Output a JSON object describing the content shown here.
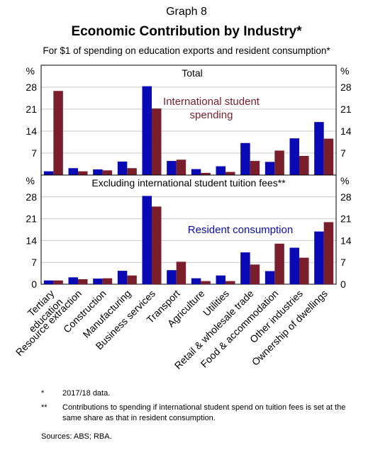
{
  "graph_number": "Graph 8",
  "title": "Economic Contribution by Industry*",
  "subtitle": "For $1 of spending on education exports and resident consumption*",
  "colors": {
    "blue": "#0A0AB4",
    "maroon": "#7B1E2C"
  },
  "chart_data": [
    {
      "type": "bar",
      "title": "Total",
      "ylabel": "%",
      "ylim": [
        0,
        35
      ],
      "yticks": [
        0,
        7,
        14,
        21,
        28
      ],
      "annotation": "International student spending",
      "categories": [
        "Tertiary education",
        "Resource extraction",
        "Construction",
        "Manufacturing",
        "Business services",
        "Transport",
        "Agriculture",
        "Utilities",
        "Retail & wholesale trade",
        "Food & accommodation",
        "Other industries",
        "Ownership of dwellings"
      ],
      "series": [
        {
          "name": "Resident consumption",
          "values": [
            1.2,
            2.2,
            1.8,
            4.3,
            28.3,
            4.5,
            1.9,
            2.8,
            10.2,
            4.2,
            11.7,
            16.9
          ]
        },
        {
          "name": "International student spending",
          "values": [
            26.8,
            1.2,
            1.5,
            2.2,
            21.2,
            4.9,
            0.7,
            1.0,
            4.5,
            7.8,
            6.1,
            11.6
          ]
        }
      ]
    },
    {
      "type": "bar",
      "title": "Excluding international student tuition fees**",
      "ylabel": "%",
      "ylim": [
        0,
        35
      ],
      "yticks": [
        0,
        7,
        14,
        21,
        28
      ],
      "annotation": "Resident consumption",
      "categories": [
        "Tertiary education",
        "Resource extraction",
        "Construction",
        "Manufacturing",
        "Business services",
        "Transport",
        "Agriculture",
        "Utilities",
        "Retail & wholesale trade",
        "Food & accommodation",
        "Other industries",
        "Ownership of dwellings"
      ],
      "series": [
        {
          "name": "Resident consumption",
          "values": [
            1.2,
            2.2,
            1.8,
            4.3,
            28.3,
            4.5,
            1.9,
            2.8,
            10.2,
            4.2,
            11.7,
            16.9
          ]
        },
        {
          "name": "International student spending",
          "values": [
            1.2,
            1.6,
            1.9,
            2.8,
            24.9,
            7.2,
            1.0,
            1.0,
            6.3,
            13.0,
            8.5,
            19.9
          ]
        }
      ]
    }
  ],
  "notes": [
    {
      "mark": "*",
      "text": "2017/18 data."
    },
    {
      "mark": "**",
      "text": "Contributions to spending if international student spend on tuition fees is set at the same share as that in resident consumption."
    }
  ],
  "sources": "Sources: ABS; RBA."
}
